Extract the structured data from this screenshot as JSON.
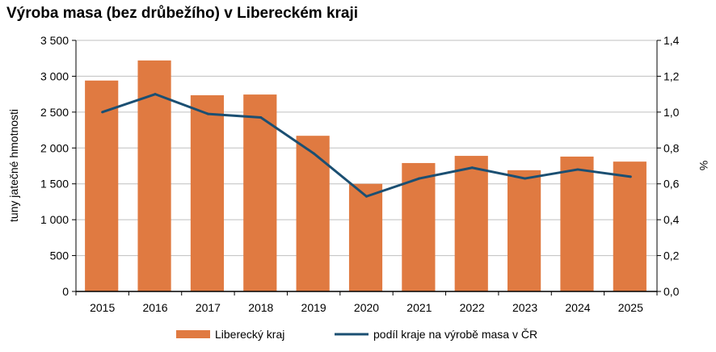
{
  "chart_data": {
    "type": "bar+line",
    "title": "Výroba masa (bez drůbežího) v Libereckém kraji",
    "categories": [
      "2015",
      "2016",
      "2017",
      "2018",
      "2019",
      "2020",
      "2021",
      "2022",
      "2023",
      "2024",
      "2025"
    ],
    "series": [
      {
        "name": "Liberecký kraj",
        "type": "bar",
        "axis": "left",
        "color": "#E07A41",
        "values": [
          2940,
          3220,
          2735,
          2745,
          2170,
          1500,
          1790,
          1890,
          1690,
          1880,
          1810
        ]
      },
      {
        "name": "podíl kraje na výrobě masa v ČR",
        "type": "line",
        "axis": "right",
        "color": "#1B4F72",
        "values": [
          1.0,
          1.1,
          0.99,
          0.97,
          0.77,
          0.53,
          0.63,
          0.69,
          0.63,
          0.68,
          0.64
        ]
      }
    ],
    "ylabel": "tuny jatečné hmotnosti",
    "ylim": [
      0,
      3500
    ],
    "yticks": [
      "0",
      "500",
      "1 000",
      "1 500",
      "2 000",
      "2 500",
      "3 000",
      "3 500"
    ],
    "y2label": "%",
    "y2lim": [
      0,
      1.4
    ],
    "y2ticks": [
      "0,0",
      "0,2",
      "0,4",
      "0,6",
      "0,8",
      "1,0",
      "1,2",
      "1,4"
    ],
    "grid": true,
    "legend": "bottom"
  }
}
